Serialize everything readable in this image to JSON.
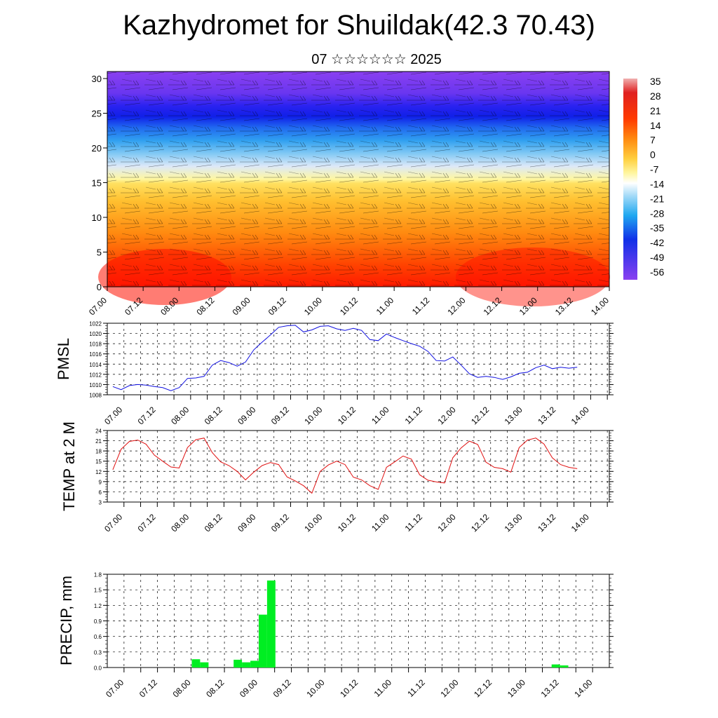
{
  "header": {
    "title": "Kazhydromet for Shuildak(42.3 70.43)",
    "subtitle": "07 ☆☆☆☆☆☆ 2025"
  },
  "chart_data": [
    {
      "type": "heatmap",
      "name": "vertical-section",
      "y_ticks": [
        "0",
        "5",
        "10",
        "15",
        "20",
        "25",
        "30"
      ],
      "ylim": [
        0,
        30
      ],
      "x_ticks": [
        "07.00",
        "07.12",
        "08.00",
        "08.12",
        "09.00",
        "09.12",
        "10.00",
        "10.12",
        "11.00",
        "11.12",
        "12.00",
        "12.12",
        "13.00",
        "13.12",
        "14.00"
      ],
      "colorbar_labels": [
        "35",
        "28",
        "21",
        "14",
        "7",
        "0",
        "-7",
        "-14",
        "-21",
        "-28",
        "-35",
        "-42",
        "-49",
        "-56"
      ],
      "colors": {
        "hot": "#ff1a00",
        "warm": "#ffd040",
        "cold": "#2030ff",
        "top": "#8a3cf0"
      },
      "overlay": "wind barbs"
    },
    {
      "type": "line",
      "name": "pmsl",
      "ylabel": "PMSL",
      "y_ticks": [
        "1008",
        "1010",
        "1012",
        "1014",
        "1016",
        "1018",
        "1020",
        "1022"
      ],
      "ylim": [
        1008,
        1022
      ],
      "x_ticks": [
        "07.00",
        "07.12",
        "08.00",
        "08.12",
        "09.00",
        "09.12",
        "10.00",
        "10.12",
        "11.00",
        "11.12",
        "12.00",
        "12.12",
        "13.00",
        "13.12",
        "14.00"
      ],
      "color": "#1010e0",
      "values": [
        1009.6,
        1009.0,
        1009.8,
        1010.0,
        1009.9,
        1009.6,
        1009.4,
        1008.8,
        1009.4,
        1011.2,
        1011.3,
        1011.6,
        1013.8,
        1014.7,
        1014.3,
        1013.6,
        1014.4,
        1016.8,
        1018.3,
        1019.7,
        1021.2,
        1021.5,
        1021.6,
        1020.3,
        1020.7,
        1021.4,
        1021.5,
        1020.9,
        1020.6,
        1021.0,
        1020.6,
        1018.8,
        1018.6,
        1019.9,
        1019.2,
        1018.6,
        1018.0,
        1017.5,
        1016.5,
        1014.7,
        1014.6,
        1015.4,
        1013.8,
        1012.1,
        1011.4,
        1011.6,
        1011.4,
        1011.0,
        1011.5,
        1012.2,
        1012.4,
        1013.3,
        1013.8,
        1013.1,
        1013.4,
        1013.2,
        1013.4
      ],
      "x_range": [
        6.75,
        14.0
      ]
    },
    {
      "type": "line",
      "name": "temp2m",
      "ylabel": "TEMP at 2 M",
      "y_ticks": [
        "3",
        "6",
        "9",
        "12",
        "15",
        "18",
        "21",
        "24"
      ],
      "ylim": [
        3,
        24
      ],
      "x_ticks": [
        "07.00",
        "07.12",
        "08.00",
        "08.12",
        "09.00",
        "09.12",
        "10.00",
        "10.12",
        "11.00",
        "11.12",
        "12.00",
        "12.12",
        "13.00",
        "13.12",
        "14.00"
      ],
      "color": "#e01010",
      "values": [
        12.5,
        18.5,
        20.8,
        21.2,
        20.0,
        16.8,
        15.0,
        13.3,
        13.0,
        19.0,
        21.3,
        21.8,
        17.5,
        14.8,
        13.7,
        12.0,
        9.5,
        11.8,
        13.7,
        14.6,
        14.0,
        10.4,
        9.2,
        7.8,
        5.6,
        12.0,
        13.9,
        15.0,
        14.0,
        10.3,
        9.5,
        7.8,
        6.7,
        13.2,
        14.8,
        16.5,
        15.6,
        11.0,
        9.4,
        8.9,
        8.6,
        16.0,
        18.9,
        20.9,
        19.9,
        14.7,
        13.2,
        12.8,
        11.8,
        19.0,
        21.2,
        21.8,
        20.0,
        16.0,
        14.0,
        13.2,
        12.8
      ],
      "x_range": [
        6.75,
        14.0
      ]
    },
    {
      "type": "bar",
      "name": "precip",
      "ylabel": "PRECIP, mm",
      "y_ticks": [
        "0.0",
        "0.3",
        "0.6",
        "0.9",
        "1.2",
        "1.5",
        "1.8"
      ],
      "ylim": [
        0,
        1.8
      ],
      "x_ticks": [
        "07.00",
        "07.12",
        "08.00",
        "08.12",
        "09.00",
        "09.12",
        "10.00",
        "10.12",
        "11.00",
        "11.12",
        "12.00",
        "12.12",
        "13.00",
        "13.12",
        "14.00"
      ],
      "color": "#00ee22",
      "bars": [
        {
          "x": 8.125,
          "value": 0.16
        },
        {
          "x": 8.25,
          "value": 0.1
        },
        {
          "x": 8.75,
          "value": 0.15
        },
        {
          "x": 8.875,
          "value": 0.1
        },
        {
          "x": 9.0,
          "value": 0.13
        },
        {
          "x": 9.125,
          "value": 1.02
        },
        {
          "x": 9.25,
          "value": 1.68
        },
        {
          "x": 13.5,
          "value": 0.06
        },
        {
          "x": 13.625,
          "value": 0.04
        }
      ]
    }
  ]
}
